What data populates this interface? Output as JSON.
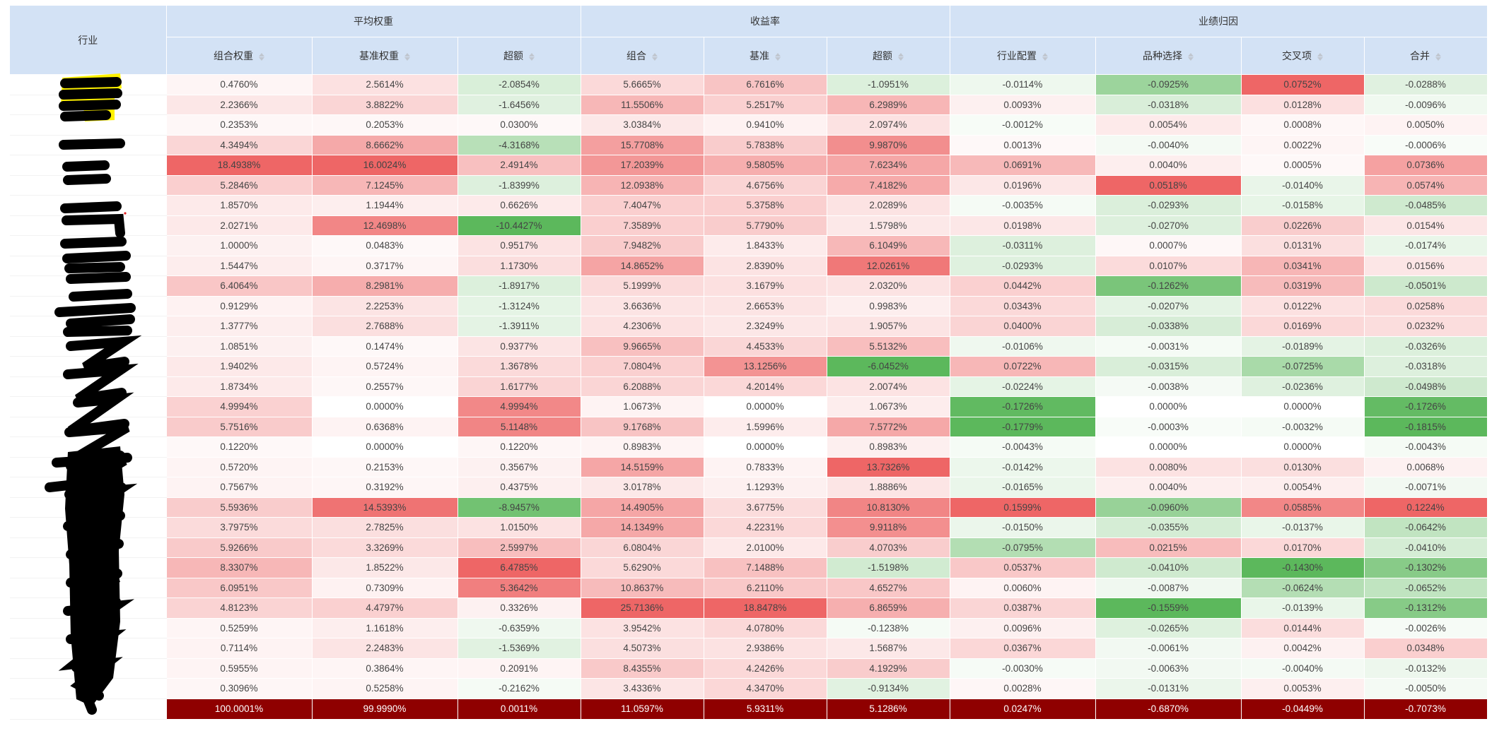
{
  "header": {
    "industry": "行业",
    "groups": [
      "平均权重",
      "收益率",
      "业绩归因"
    ],
    "columns": [
      "组合权重",
      "基准权重",
      "超额",
      "组合",
      "基准",
      "超额",
      "行业配置",
      "品种选择",
      "交叉项",
      "合并"
    ]
  },
  "colors": {
    "header_bg": "#d3e2f5",
    "positive": "#ee6666",
    "negative": "#5cb85c",
    "total_bg": "#8f0000",
    "highlight": "#fff200",
    "redaction": "#000000"
  },
  "rows": [
    [
      "0.4760%",
      "2.5614%",
      "-2.0854%",
      "5.6665%",
      "6.7616%",
      "-1.0951%",
      "-0.0114%",
      "-0.0925%",
      "0.0752%",
      "-0.0288%"
    ],
    [
      "2.2366%",
      "3.8822%",
      "-1.6456%",
      "11.5506%",
      "5.2517%",
      "6.2989%",
      "0.0093%",
      "-0.0318%",
      "0.0128%",
      "-0.0096%"
    ],
    [
      "0.2353%",
      "0.2053%",
      "0.0300%",
      "3.0384%",
      "0.9410%",
      "2.0974%",
      "-0.0012%",
      "0.0054%",
      "0.0008%",
      "0.0050%"
    ],
    [
      "4.3494%",
      "8.6662%",
      "-4.3168%",
      "15.7708%",
      "5.7838%",
      "9.9870%",
      "0.0013%",
      "-0.0040%",
      "0.0022%",
      "-0.0006%"
    ],
    [
      "18.4938%",
      "16.0024%",
      "2.4914%",
      "17.2039%",
      "9.5805%",
      "7.6234%",
      "0.0691%",
      "0.0040%",
      "0.0005%",
      "0.0736%"
    ],
    [
      "5.2846%",
      "7.1245%",
      "-1.8399%",
      "12.0938%",
      "4.6756%",
      "7.4182%",
      "0.0196%",
      "0.0518%",
      "-0.0140%",
      "0.0574%"
    ],
    [
      "1.8570%",
      "1.1944%",
      "0.6626%",
      "7.4047%",
      "5.3758%",
      "2.0289%",
      "-0.0035%",
      "-0.0293%",
      "-0.0158%",
      "-0.0485%"
    ],
    [
      "2.0271%",
      "12.4698%",
      "-10.4427%",
      "7.3589%",
      "5.7790%",
      "1.5798%",
      "0.0198%",
      "-0.0270%",
      "0.0226%",
      "0.0154%"
    ],
    [
      "1.0000%",
      "0.0483%",
      "0.9517%",
      "7.9482%",
      "1.8433%",
      "6.1049%",
      "-0.0311%",
      "0.0007%",
      "0.0131%",
      "-0.0174%"
    ],
    [
      "1.5447%",
      "0.3717%",
      "1.1730%",
      "14.8652%",
      "2.8390%",
      "12.0261%",
      "-0.0293%",
      "0.0107%",
      "0.0341%",
      "0.0156%"
    ],
    [
      "6.4064%",
      "8.2981%",
      "-1.8917%",
      "5.1999%",
      "3.1679%",
      "2.0320%",
      "0.0442%",
      "-0.1262%",
      "0.0319%",
      "-0.0501%"
    ],
    [
      "0.9129%",
      "2.2253%",
      "-1.3124%",
      "3.6636%",
      "2.6653%",
      "0.9983%",
      "0.0343%",
      "-0.0207%",
      "0.0122%",
      "0.0258%"
    ],
    [
      "1.3777%",
      "2.7688%",
      "-1.3911%",
      "4.2306%",
      "2.3249%",
      "1.9057%",
      "0.0400%",
      "-0.0338%",
      "0.0169%",
      "0.0232%"
    ],
    [
      "1.0851%",
      "0.1474%",
      "0.9377%",
      "9.9665%",
      "4.4533%",
      "5.5132%",
      "-0.0106%",
      "-0.0031%",
      "-0.0189%",
      "-0.0326%"
    ],
    [
      "1.9402%",
      "0.5724%",
      "1.3678%",
      "7.0804%",
      "13.1256%",
      "-6.0452%",
      "0.0722%",
      "-0.0315%",
      "-0.0725%",
      "-0.0318%"
    ],
    [
      "1.8734%",
      "0.2557%",
      "1.6177%",
      "6.2088%",
      "4.2014%",
      "2.0074%",
      "-0.0224%",
      "-0.0038%",
      "-0.0236%",
      "-0.0498%"
    ],
    [
      "4.9994%",
      "0.0000%",
      "4.9994%",
      "1.0673%",
      "0.0000%",
      "1.0673%",
      "-0.1726%",
      "0.0000%",
      "0.0000%",
      "-0.1726%"
    ],
    [
      "5.7516%",
      "0.6368%",
      "5.1148%",
      "9.1768%",
      "1.5996%",
      "7.5772%",
      "-0.1779%",
      "-0.0003%",
      "-0.0032%",
      "-0.1815%"
    ],
    [
      "0.1220%",
      "0.0000%",
      "0.1220%",
      "0.8983%",
      "0.0000%",
      "0.8983%",
      "-0.0043%",
      "0.0000%",
      "0.0000%",
      "-0.0043%"
    ],
    [
      "0.5720%",
      "0.2153%",
      "0.3567%",
      "14.5159%",
      "0.7833%",
      "13.7326%",
      "-0.0142%",
      "0.0080%",
      "0.0130%",
      "0.0068%"
    ],
    [
      "0.7567%",
      "0.3192%",
      "0.4375%",
      "3.0178%",
      "1.1293%",
      "1.8886%",
      "-0.0165%",
      "0.0040%",
      "0.0054%",
      "-0.0071%"
    ],
    [
      "5.5936%",
      "14.5393%",
      "-8.9457%",
      "14.4905%",
      "3.6775%",
      "10.8130%",
      "0.1599%",
      "-0.0960%",
      "0.0585%",
      "0.1224%"
    ],
    [
      "3.7975%",
      "2.7825%",
      "1.0150%",
      "14.1349%",
      "4.2231%",
      "9.9118%",
      "-0.0150%",
      "-0.0355%",
      "-0.0137%",
      "-0.0642%"
    ],
    [
      "5.9266%",
      "3.3269%",
      "2.5997%",
      "6.0804%",
      "2.0100%",
      "4.0703%",
      "-0.0795%",
      "0.0215%",
      "0.0170%",
      "-0.0410%"
    ],
    [
      "8.3307%",
      "1.8522%",
      "6.4785%",
      "5.6290%",
      "7.1488%",
      "-1.5198%",
      "0.0537%",
      "-0.0410%",
      "-0.1430%",
      "-0.1302%"
    ],
    [
      "6.0951%",
      "0.7309%",
      "5.3642%",
      "10.8637%",
      "6.2110%",
      "4.6527%",
      "0.0060%",
      "-0.0087%",
      "-0.0624%",
      "-0.0652%"
    ],
    [
      "4.8123%",
      "4.4797%",
      "0.3326%",
      "25.7136%",
      "18.8478%",
      "6.8659%",
      "0.0387%",
      "-0.1559%",
      "-0.0139%",
      "-0.1312%"
    ],
    [
      "0.5259%",
      "1.1618%",
      "-0.6359%",
      "3.9542%",
      "4.0780%",
      "-0.1238%",
      "0.0096%",
      "-0.0265%",
      "0.0144%",
      "-0.0026%"
    ],
    [
      "0.7114%",
      "2.2483%",
      "-1.5369%",
      "4.5073%",
      "2.9386%",
      "1.5687%",
      "0.0367%",
      "-0.0061%",
      "0.0042%",
      "0.0348%"
    ],
    [
      "0.5955%",
      "0.3864%",
      "0.2091%",
      "8.4355%",
      "4.2426%",
      "4.1929%",
      "-0.0030%",
      "-0.0063%",
      "-0.0040%",
      "-0.0132%"
    ],
    [
      "0.3096%",
      "0.5258%",
      "-0.2162%",
      "3.4336%",
      "4.3470%",
      "-0.9134%",
      "0.0028%",
      "-0.0131%",
      "0.0053%",
      "-0.0050%"
    ]
  ],
  "total": [
    "100.0001%",
    "99.9990%",
    "0.0011%",
    "11.0597%",
    "5.9311%",
    "5.1286%",
    "0.0247%",
    "-0.6870%",
    "-0.0449%",
    "-0.7073%"
  ]
}
